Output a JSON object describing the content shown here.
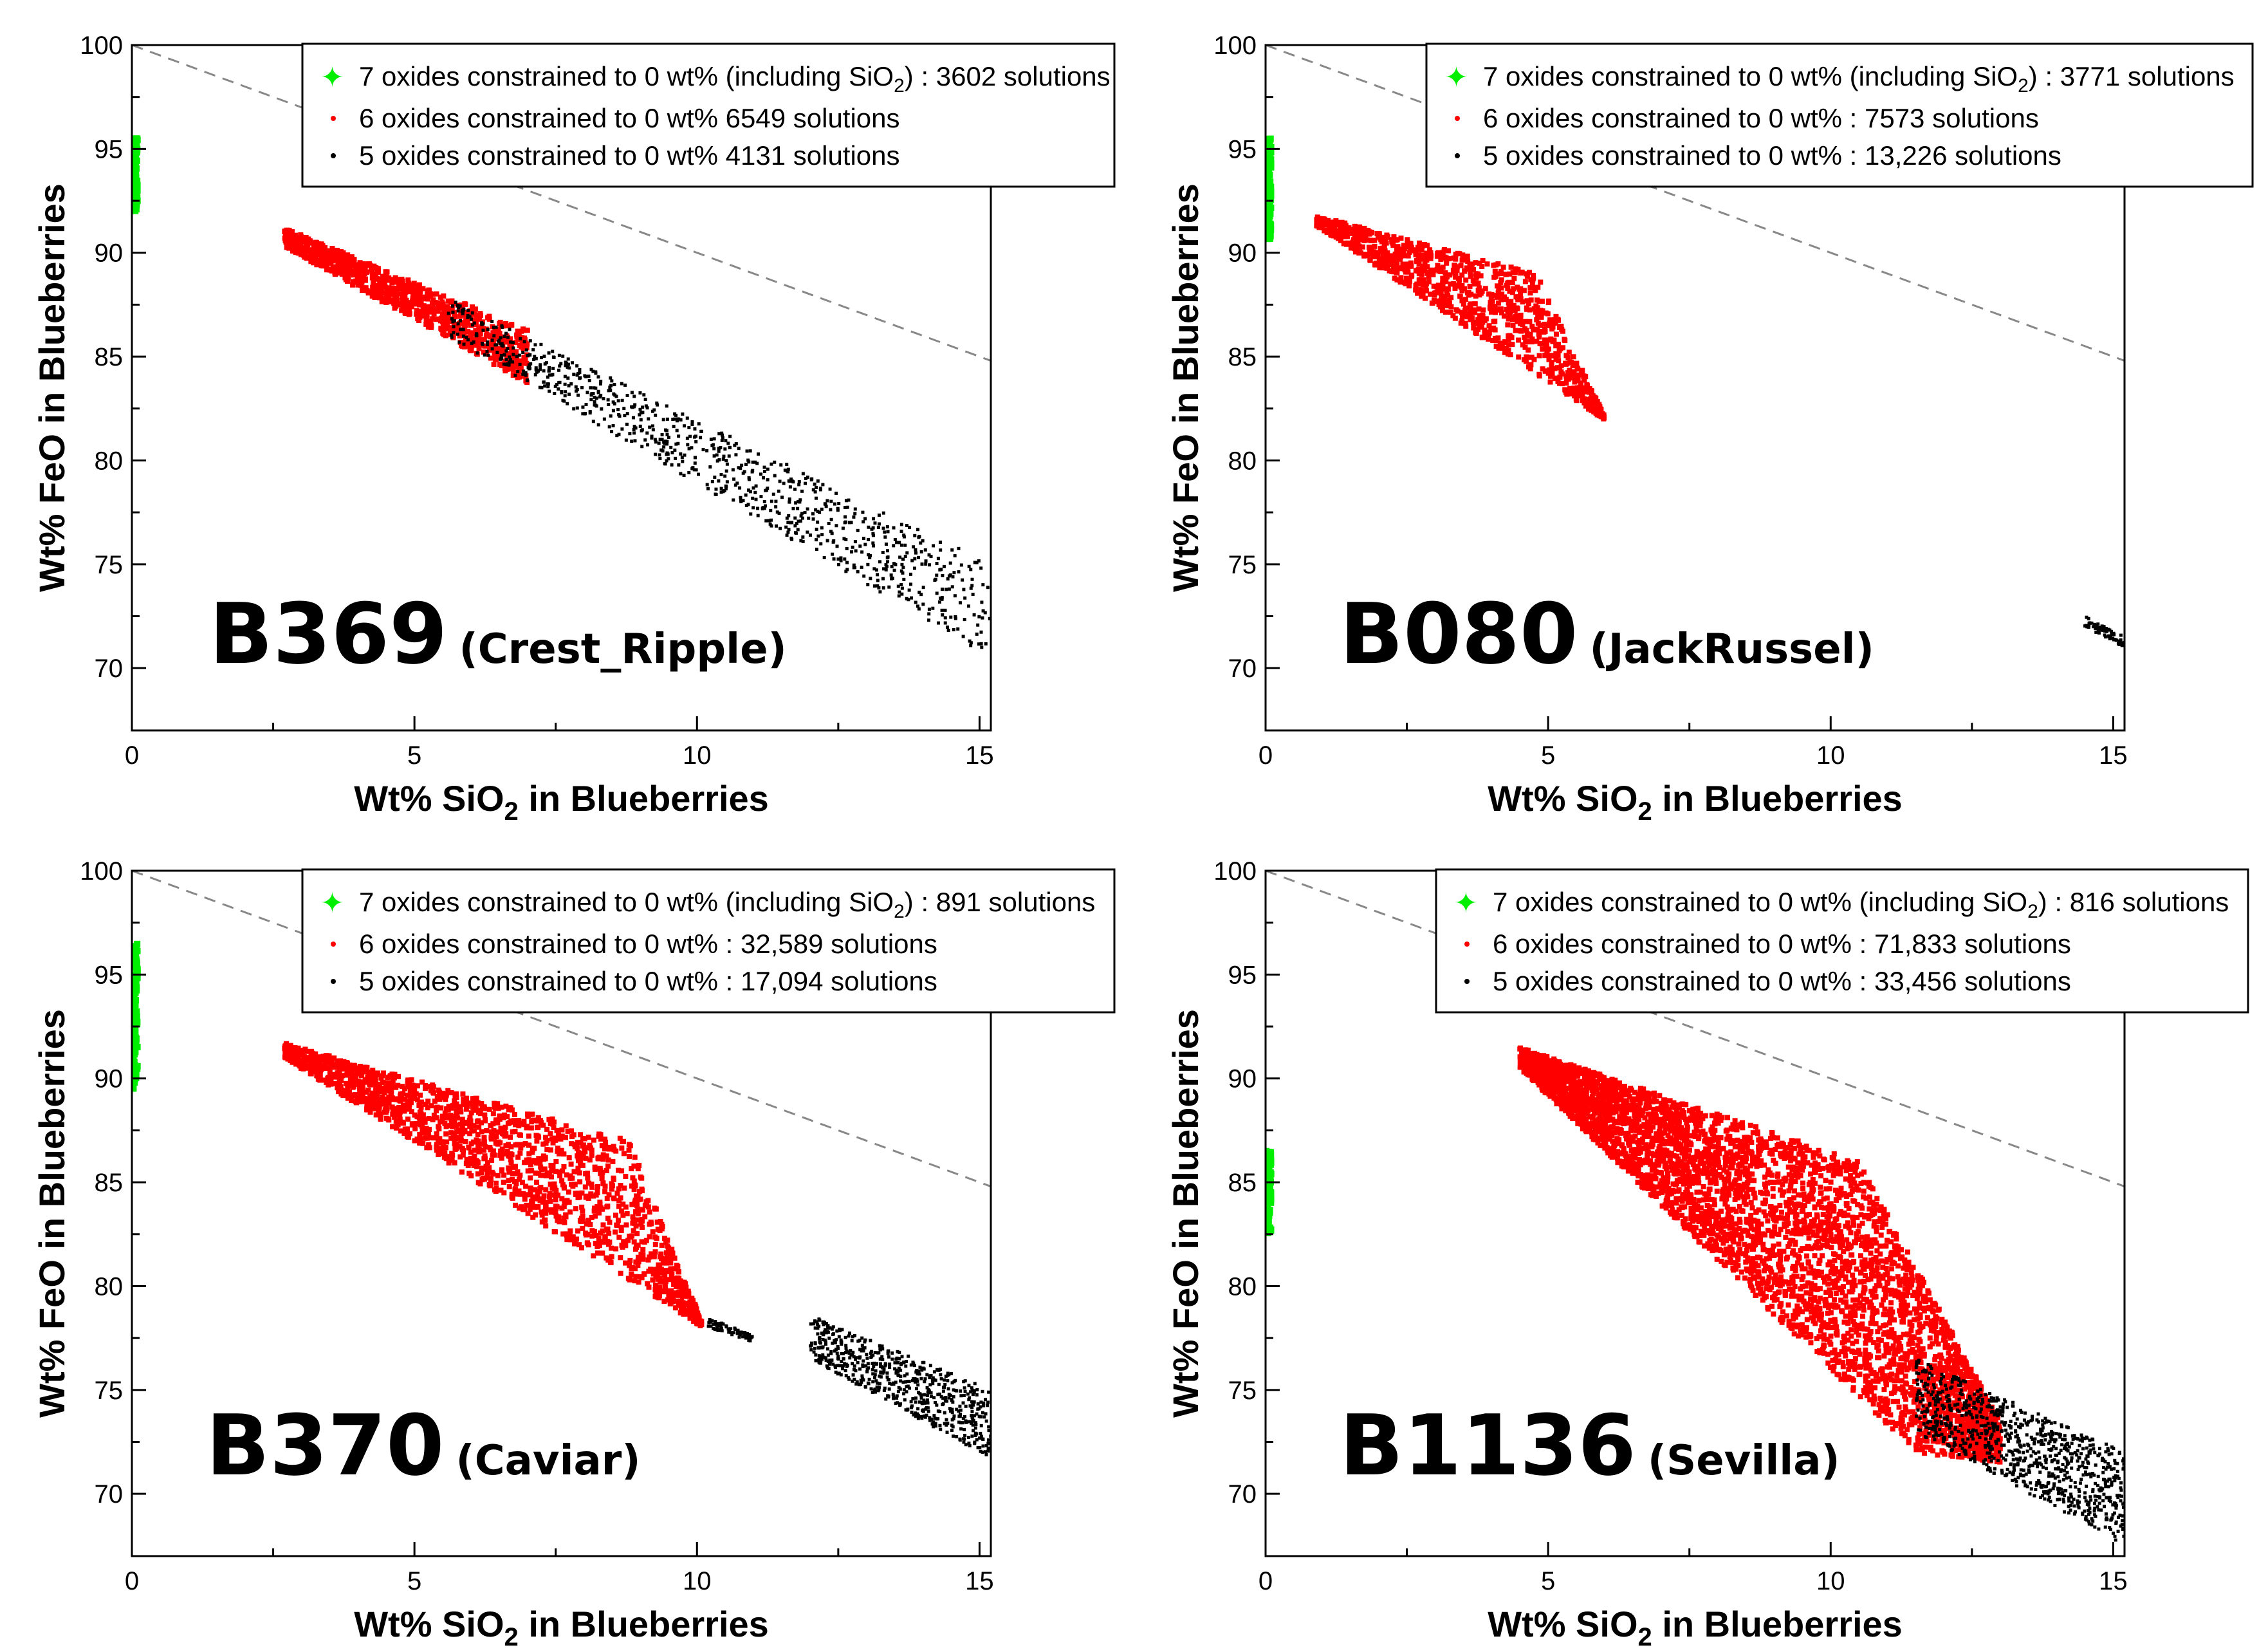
{
  "figure": {
    "xlabel_prefix": "Wt% SiO",
    "xlabel_sub": "2",
    "xlabel_suffix": " in Blueberries",
    "ylabel": "Wt% FeO in Blueberries",
    "xticks": [
      "0",
      "5",
      "10",
      "15"
    ],
    "yticks": [
      "70",
      "75",
      "80",
      "85",
      "90",
      "95",
      "100"
    ]
  },
  "chart_data": [
    {
      "type": "scatter",
      "sample": "B369",
      "name": "(Crest_Ripple)",
      "xlim": [
        0,
        15.2
      ],
      "ylim": [
        67,
        100
      ],
      "reference_line": {
        "x": [
          0,
          15.2
        ],
        "y": [
          100,
          84.8
        ]
      },
      "legend": {
        "green": {
          "pre": "7 oxides constrained to 0 wt% (including SiO",
          "sub": "2",
          "post": ") : 3602 solutions"
        },
        "red": "6 oxides constrained to 0 wt%  6549 solutions",
        "black": "5 oxides constrained to 0 wt%  4131 solutions"
      },
      "series": [
        {
          "name": "7 oxides constrained to 0 wt%",
          "color": "#00ee00",
          "solutions": 3602,
          "x_range": [
            0,
            0.1
          ],
          "y_range": [
            92,
            95.5
          ]
        },
        {
          "name": "6 oxides constrained to 0 wt%",
          "color": "#ff0000",
          "solutions": 6549,
          "x_range": [
            2.7,
            7.0
          ],
          "y_range": [
            84,
            91.2
          ]
        },
        {
          "name": "5 oxides constrained to 0 wt%",
          "color": "#000000",
          "solutions": 4131,
          "x_range": [
            5.5,
            15.2
          ],
          "y_range": [
            70.5,
            87.5
          ]
        }
      ]
    },
    {
      "type": "scatter",
      "sample": "B080",
      "name": "(JackRussel)",
      "xlim": [
        0,
        15.2
      ],
      "ylim": [
        67,
        100
      ],
      "reference_line": {
        "x": [
          0,
          15.2
        ],
        "y": [
          100,
          84.8
        ]
      },
      "legend": {
        "green": {
          "pre": "7 oxides constrained to 0 wt% (including SiO",
          "sub": "2",
          "post": ") :  3771 solutions"
        },
        "red": "6 oxides constrained to 0 wt% :     7573 solutions",
        "black": "5 oxides constrained to 0 wt%  : 13,226 solutions"
      },
      "series": [
        {
          "name": "7 oxides constrained to 0 wt%",
          "color": "#00ee00",
          "solutions": 3771,
          "x_range": [
            0,
            0.1
          ],
          "y_range": [
            90.5,
            95.5
          ]
        },
        {
          "name": "6 oxides constrained to 0 wt%",
          "color": "#ff0000",
          "solutions": 7573,
          "x_range": [
            0.9,
            6.0
          ],
          "y_range": [
            82,
            91.8
          ]
        },
        {
          "name": "5 oxides constrained to 0 wt%",
          "color": "#000000",
          "solutions": 13226,
          "x_range": [
            14.5,
            15.2
          ],
          "y_range": [
            71,
            72.5
          ]
        }
      ]
    },
    {
      "type": "scatter",
      "sample": "B370",
      "name": "(Caviar)",
      "xlim": [
        0,
        15.2
      ],
      "ylim": [
        67,
        100
      ],
      "reference_line": {
        "x": [
          0,
          15.2
        ],
        "y": [
          100,
          84.8
        ]
      },
      "legend": {
        "green": {
          "pre": "7 oxides constrained to 0 wt% (including SiO",
          "sub": "2",
          "post": ") :     891 solutions"
        },
        "red": "6 oxides constrained to 0 wt% : 32,589 solutions",
        "black": "5 oxides constrained to 0 wt% : 17,094 solutions"
      },
      "series": [
        {
          "name": "7 oxides constrained to 0 wt%",
          "color": "#00ee00",
          "solutions": 891,
          "x_range": [
            0,
            0.1
          ],
          "y_range": [
            89.5,
            96.5
          ]
        },
        {
          "name": "6 oxides constrained to 0 wt%",
          "color": "#ff0000",
          "solutions": 32589,
          "x_range": [
            2.7,
            10.1
          ],
          "y_range": [
            78,
            91.7
          ]
        },
        {
          "name": "5 oxides constrained to 0 wt%",
          "color": "#000000",
          "solutions": 17094,
          "x_range": [
            10.1,
            15.2
          ],
          "y_range": [
            71.5,
            78.5
          ]
        }
      ]
    },
    {
      "type": "scatter",
      "sample": "B1136",
      "name": "(Sevilla)",
      "xlim": [
        0,
        15.2
      ],
      "ylim": [
        67,
        100
      ],
      "reference_line": {
        "x": [
          0,
          15.2
        ],
        "y": [
          100,
          84.8
        ]
      },
      "legend": {
        "green": {
          "pre": "7 oxides constrained to 0 wt% (including SiO",
          "sub": "2",
          "post": ") : 816 solutions"
        },
        "red": "6 oxides constrained to 0 wt% : 71,833 solutions",
        "black": "5 oxides constrained to 0 wt% : 33,456 solutions"
      },
      "series": [
        {
          "name": "7 oxides constrained to 0 wt%",
          "color": "#00ee00",
          "solutions": 816,
          "x_range": [
            0,
            0.1
          ],
          "y_range": [
            82.5,
            86.5
          ]
        },
        {
          "name": "6 oxides constrained to 0 wt%",
          "color": "#ff0000",
          "solutions": 71833,
          "x_range": [
            4.5,
            13.0
          ],
          "y_range": [
            71.5,
            91.5
          ]
        },
        {
          "name": "5 oxides constrained to 0 wt%",
          "color": "#000000",
          "solutions": 33456,
          "x_range": [
            11.5,
            15.2
          ],
          "y_range": [
            67.5,
            76.5
          ]
        }
      ]
    }
  ]
}
